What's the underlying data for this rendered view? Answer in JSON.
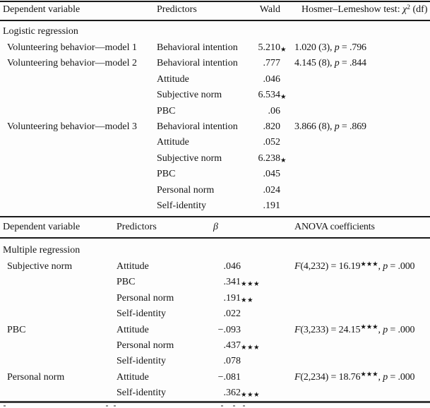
{
  "colors": {
    "background": "#fdfdfd",
    "text": "#161616",
    "rule": "#1a1a1a",
    "bottom_rule": "#3c3c3c"
  },
  "logistic_table": {
    "header": {
      "dependent_variable": "Dependent variable",
      "predictors": "Predictors",
      "wald": "Wald",
      "hosmer_lemeshow": [
        {
          "t": "Hosmer–Lemeshow test: "
        },
        {
          "t": "χ",
          "i": true
        },
        {
          "t": "2",
          "sup": true
        },
        {
          "t": " (df)"
        }
      ]
    },
    "section_label": "Logistic regression",
    "rows": [
      {
        "dep": "Volunteering behavior—model 1",
        "pred": "Behavioral intention",
        "wald": "5.210",
        "wald_stars": "★",
        "hl": [
          {
            "t": "1.020 (3), "
          },
          {
            "t": "p",
            "i": true
          },
          {
            "t": " = .796"
          }
        ]
      },
      {
        "dep": "Volunteering behavior—model 2",
        "pred": "Behavioral intention",
        "wald": ".777",
        "wald_stars": "",
        "hl": [
          {
            "t": "4.145 (8), "
          },
          {
            "t": "p",
            "i": true
          },
          {
            "t": " = .844"
          }
        ]
      },
      {
        "dep": "",
        "pred": "Attitude",
        "wald": ".046",
        "wald_stars": "",
        "hl": null
      },
      {
        "dep": "",
        "pred": "Subjective norm",
        "wald": "6.534",
        "wald_stars": "★",
        "hl": null
      },
      {
        "dep": "",
        "pred": "PBC",
        "wald": ".06",
        "wald_stars": "",
        "hl": null
      },
      {
        "dep": "Volunteering behavior—model 3",
        "pred": "Behavioral intention",
        "wald": ".820",
        "wald_stars": "",
        "hl": [
          {
            "t": "3.866 (8), "
          },
          {
            "t": "p",
            "i": true
          },
          {
            "t": " = .869"
          }
        ]
      },
      {
        "dep": "",
        "pred": "Attitude",
        "wald": ".052",
        "wald_stars": "",
        "hl": null
      },
      {
        "dep": "",
        "pred": "Subjective norm",
        "wald": "6.238",
        "wald_stars": "★",
        "hl": null
      },
      {
        "dep": "",
        "pred": "PBC",
        "wald": ".045",
        "wald_stars": "",
        "hl": null
      },
      {
        "dep": "",
        "pred": "Personal norm",
        "wald": ".024",
        "wald_stars": "",
        "hl": null
      },
      {
        "dep": "",
        "pred": "Self-identity",
        "wald": ".191",
        "wald_stars": "",
        "hl": null
      }
    ]
  },
  "regression_table": {
    "header": {
      "dependent_variable": "Dependent variable",
      "predictors": "Predictors",
      "beta": [
        {
          "t": "β",
          "i": true
        }
      ],
      "anova": "ANOVA coefficients"
    },
    "section_label": "Multiple regression",
    "rows": [
      {
        "dep": "Subjective norm",
        "pred": "Attitude",
        "beta": ".046",
        "beta_stars": "",
        "anova": [
          {
            "t": "F",
            "i": true
          },
          {
            "t": "(4,232) = 16.19"
          },
          {
            "t": "★★★",
            "sup": true
          },
          {
            "t": ", "
          },
          {
            "t": "p",
            "i": true
          },
          {
            "t": " = .000"
          }
        ]
      },
      {
        "dep": "",
        "pred": "PBC",
        "beta": ".341",
        "beta_stars": "★★★",
        "anova": null
      },
      {
        "dep": "",
        "pred": "Personal norm",
        "beta": ".191",
        "beta_stars": "★★",
        "anova": null
      },
      {
        "dep": "",
        "pred": "Self-identity",
        "beta": ".022",
        "beta_stars": "",
        "anova": null
      },
      {
        "dep": "PBC",
        "pred": "Attitude",
        "beta": "−.093",
        "beta_stars": "",
        "anova": [
          {
            "t": "F",
            "i": true
          },
          {
            "t": "(3,233) = 24.15"
          },
          {
            "t": "★★★",
            "sup": true
          },
          {
            "t": ", "
          },
          {
            "t": "p",
            "i": true
          },
          {
            "t": " = .000"
          }
        ]
      },
      {
        "dep": "",
        "pred": "Personal norm",
        "beta": ".437",
        "beta_stars": "★★★",
        "anova": null
      },
      {
        "dep": "",
        "pred": "Self-identity",
        "beta": ".078",
        "beta_stars": "",
        "anova": null
      },
      {
        "dep": "Personal norm",
        "pred": "Attitude",
        "beta": "−.081",
        "beta_stars": "",
        "anova": [
          {
            "t": "F",
            "i": true
          },
          {
            "t": "(2,234) = 18.76"
          },
          {
            "t": "★★★",
            "sup": true
          },
          {
            "t": ", "
          },
          {
            "t": "p",
            "i": true
          },
          {
            "t": " = .000"
          }
        ]
      },
      {
        "dep": "",
        "pred": "Self-identity",
        "beta": ".362",
        "beta_stars": "★★★",
        "anova": null
      }
    ]
  },
  "footnote": {
    "clipped": true
  }
}
